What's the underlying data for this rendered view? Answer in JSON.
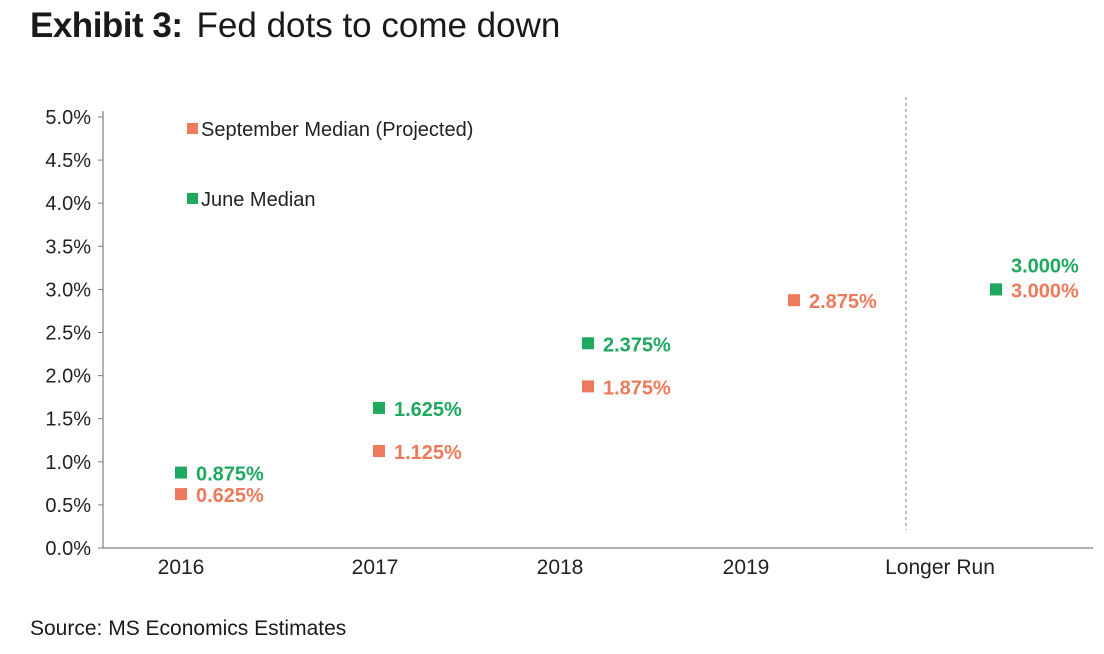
{
  "title": {
    "label": "Exhibit 3:",
    "text": "Fed dots to come down"
  },
  "source": "Source: MS Economics Estimates",
  "colors": {
    "september": "#ed7a5c",
    "june": "#1fa860",
    "axis": "#7f7f7f",
    "text": "#222222"
  },
  "chart_data": {
    "type": "scatter",
    "title": "Fed dots to come down",
    "xlabel": "",
    "ylabel": "",
    "categories": [
      "2016",
      "2017",
      "2018",
      "2019",
      "Longer Run"
    ],
    "ylim": [
      0,
      5
    ],
    "yticks": [
      "0.0%",
      "0.5%",
      "1.0%",
      "1.5%",
      "2.0%",
      "2.5%",
      "3.0%",
      "3.5%",
      "4.0%",
      "4.5%",
      "5.0%"
    ],
    "legend_position": "top-left",
    "series": [
      {
        "name": "September Median (Projected)",
        "color": "#ed7a5c",
        "values": [
          0.625,
          1.125,
          1.875,
          2.875,
          3.0
        ],
        "labels": [
          "0.625%",
          "1.125%",
          "1.875%",
          "2.875%",
          "3.000%"
        ]
      },
      {
        "name": "June Median",
        "color": "#1fa860",
        "values": [
          0.875,
          1.625,
          2.375,
          null,
          3.0
        ],
        "labels": [
          "0.875%",
          "1.625%",
          "2.375%",
          null,
          "3.000%"
        ]
      }
    ],
    "separator_before": "Longer Run"
  }
}
